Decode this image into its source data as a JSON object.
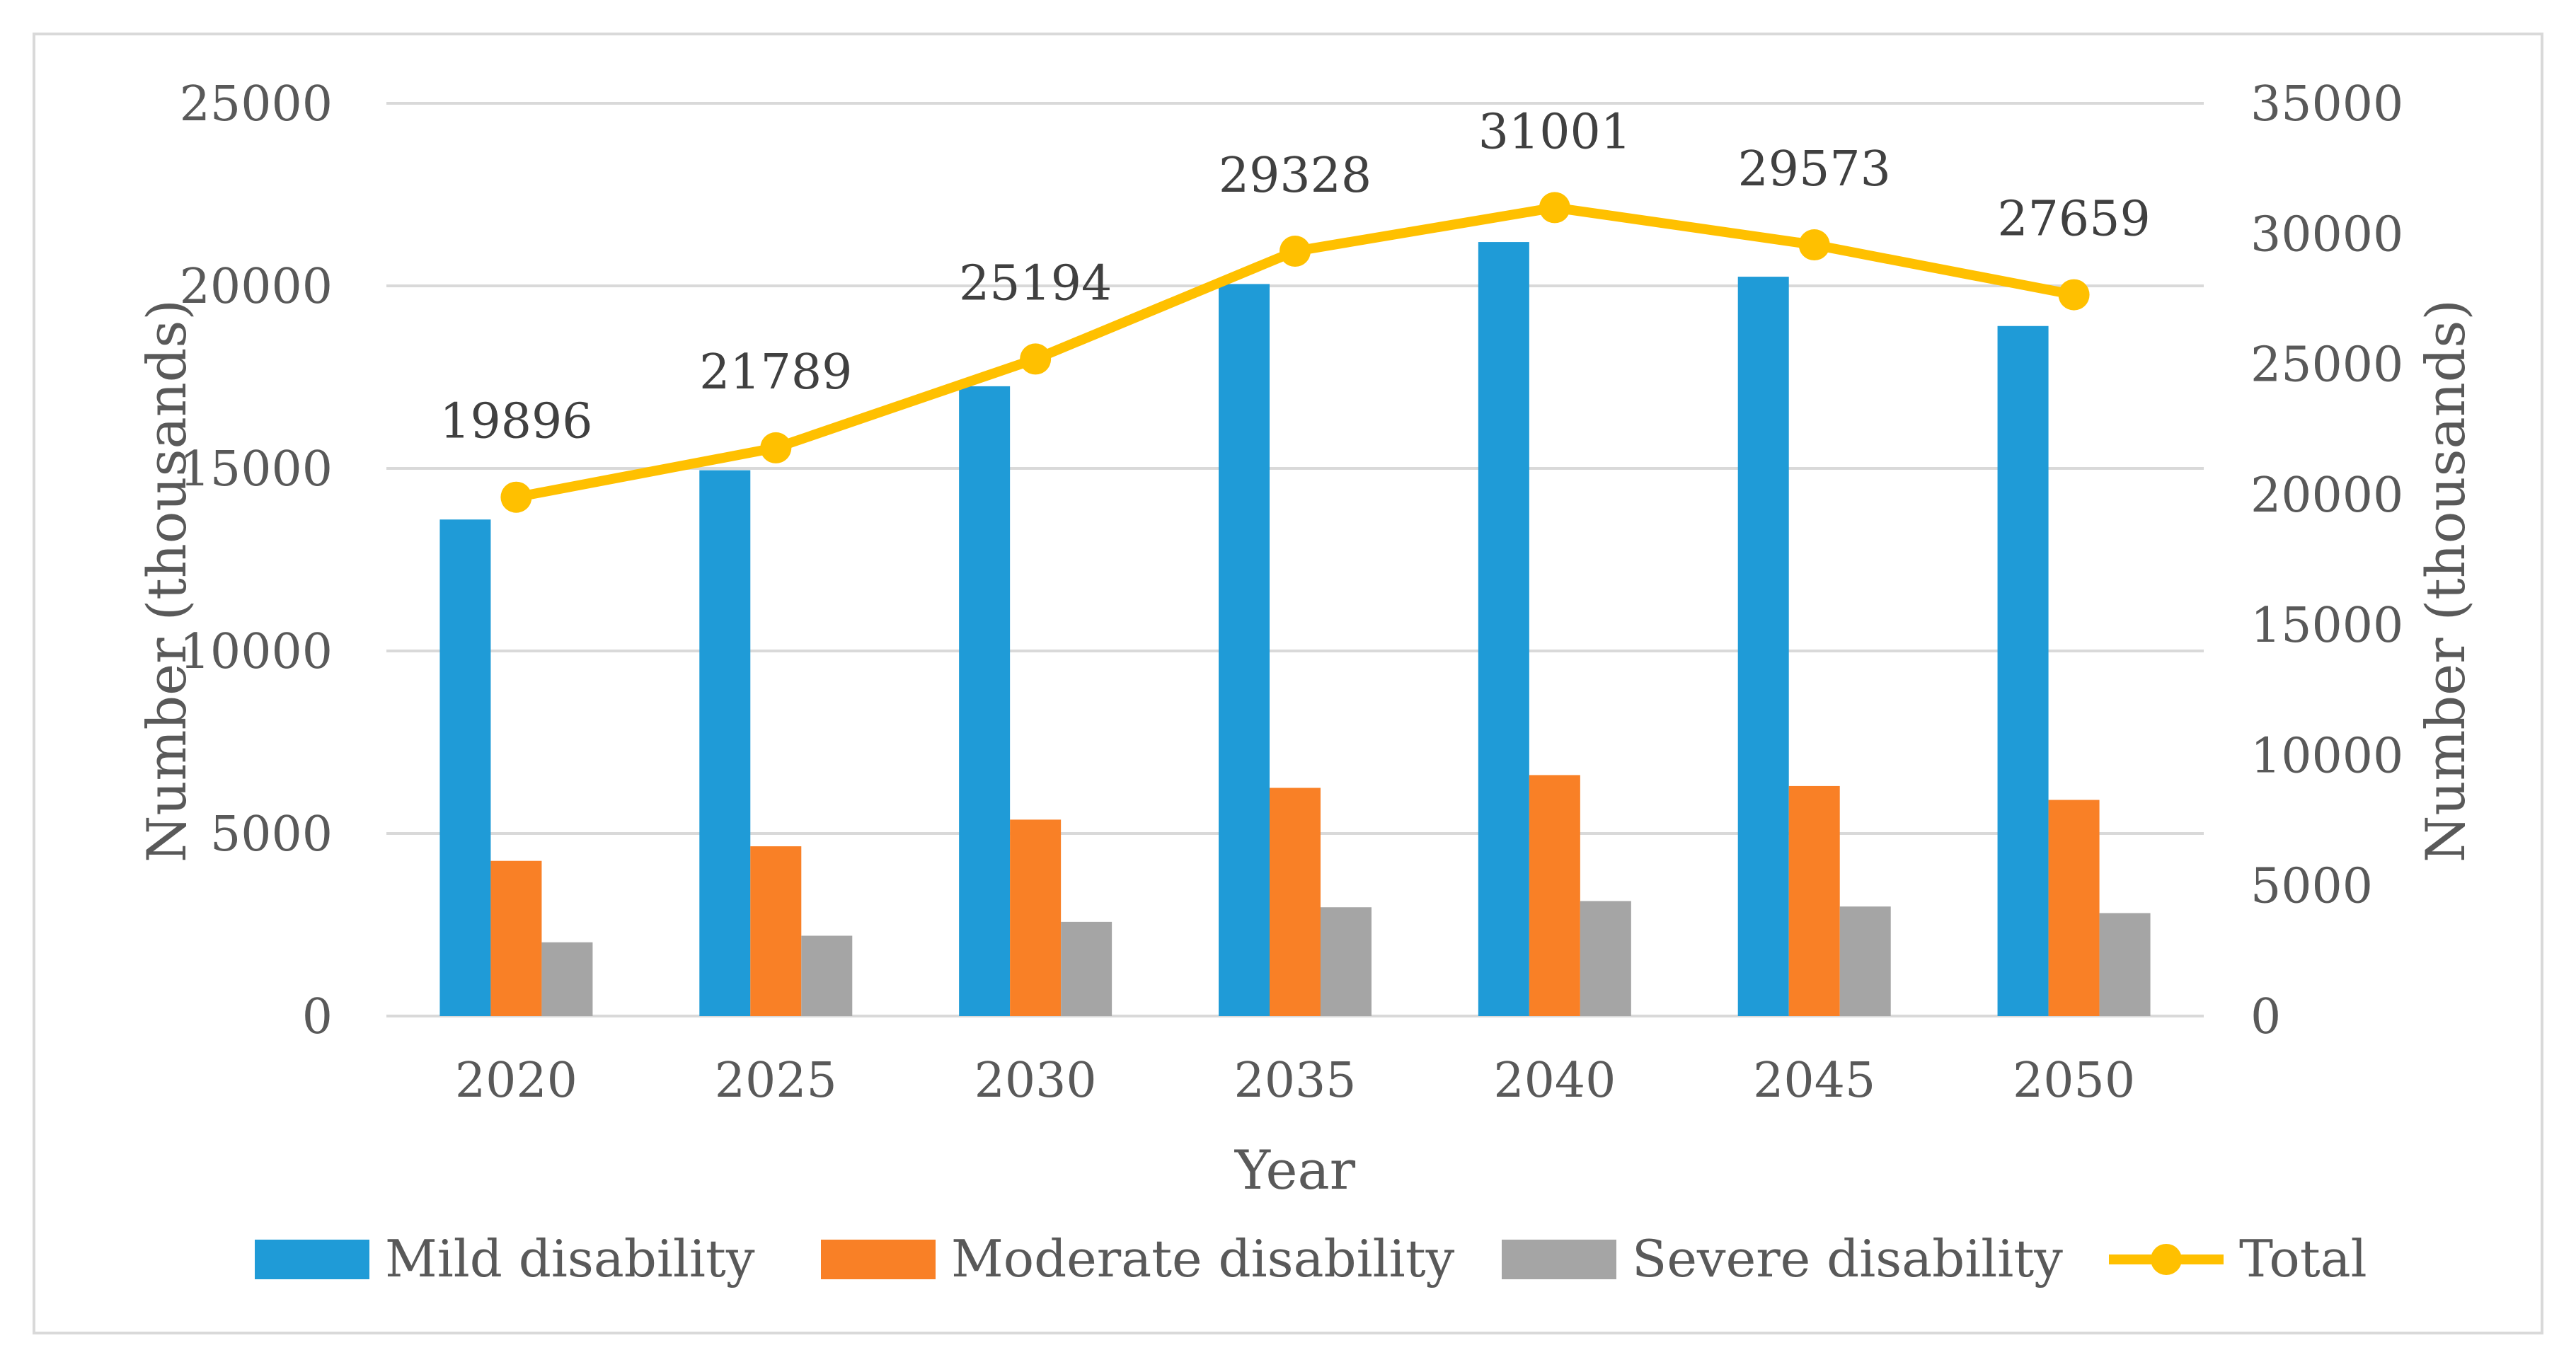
{
  "chart_data": {
    "type": "bar",
    "title": "",
    "xlabel": "Year",
    "ylabel": "Number (thousands)",
    "y2label": "Number (thousands)",
    "categories": [
      "2020",
      "2025",
      "2030",
      "2035",
      "2040",
      "2045",
      "2050"
    ],
    "ylim": [
      0,
      25000
    ],
    "y2lim": [
      0,
      35000
    ],
    "yticks": [
      "0",
      "5000",
      "10000",
      "15000",
      "20000",
      "25000"
    ],
    "y2ticks": [
      "0",
      "5000",
      "10000",
      "15000",
      "20000",
      "25000",
      "30000",
      "35000"
    ],
    "grid": true,
    "legend_position": "bottom",
    "series": [
      {
        "name": "Mild disability",
        "type": "bar",
        "axis": "left",
        "color": "#1f9bd7",
        "values": [
          13600,
          14950,
          17250,
          20050,
          21200,
          20250,
          18900
        ]
      },
      {
        "name": "Moderate disability",
        "type": "bar",
        "axis": "left",
        "color": "#f98026",
        "values": [
          4250,
          4650,
          5380,
          6250,
          6600,
          6300,
          5920
        ]
      },
      {
        "name": "Severe disability",
        "type": "bar",
        "axis": "left",
        "color": "#a5a5a5",
        "values": [
          2020,
          2200,
          2580,
          2980,
          3150,
          3000,
          2820
        ]
      },
      {
        "name": "Total",
        "type": "line",
        "axis": "right",
        "color": "#ffc000",
        "values": [
          19896,
          21789,
          25194,
          29328,
          31001,
          29573,
          27659
        ],
        "labels": [
          "19896",
          "21789",
          "25194",
          "29328",
          "31001",
          "29573",
          "27659"
        ]
      }
    ]
  }
}
